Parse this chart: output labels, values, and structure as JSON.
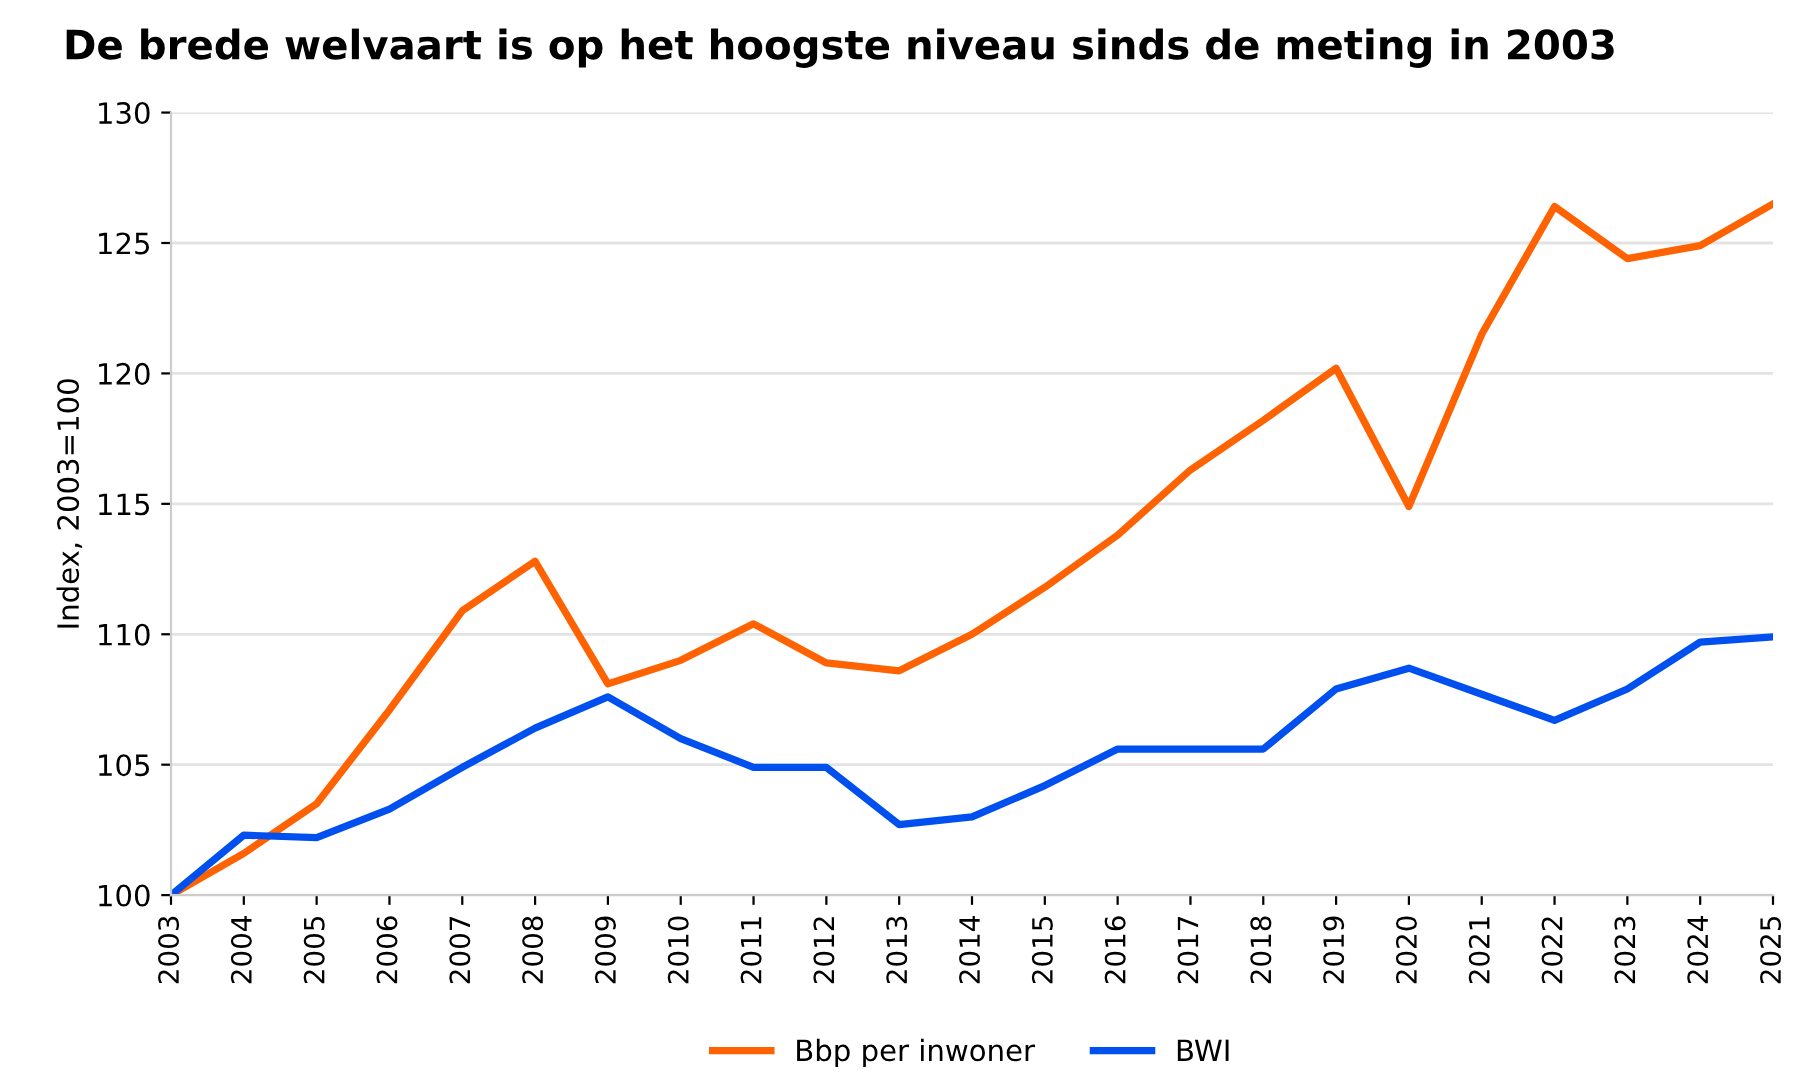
{
  "chart_data": {
    "type": "line",
    "title": "De brede welvaart is op het hoogste niveau sinds de meting in 2003",
    "ylabel": "Index, 2003=100",
    "categories": [
      "2003",
      "2004",
      "2005",
      "2006",
      "2007",
      "2008",
      "2009",
      "2010",
      "2011",
      "2012",
      "2013",
      "2014",
      "2015",
      "2016",
      "2017",
      "2018",
      "2019",
      "2020",
      "2021",
      "2022",
      "2023",
      "2024",
      "2025"
    ],
    "series": [
      {
        "name": "Bbp per inwoner",
        "color": "#ff6200",
        "values": [
          100,
          101.6,
          103.5,
          107.1,
          110.9,
          112.8,
          108.1,
          109.0,
          110.4,
          108.9,
          108.6,
          110.0,
          111.8,
          113.8,
          116.3,
          118.2,
          120.2,
          114.9,
          121.5,
          126.4,
          124.4,
          124.9,
          126.5
        ]
      },
      {
        "name": "BWI",
        "color": "#0050f0",
        "values": [
          100,
          102.3,
          102.2,
          103.3,
          104.9,
          106.4,
          107.6,
          106.0,
          104.9,
          104.9,
          102.7,
          103.0,
          104.2,
          105.6,
          105.6,
          105.6,
          107.9,
          108.7,
          107.7,
          106.7,
          107.9,
          109.7,
          109.9
        ]
      }
    ],
    "ylim": [
      100,
      130
    ],
    "yticks": [
      100,
      105,
      110,
      115,
      120,
      125,
      130
    ],
    "grid": "y",
    "legend": "bottom",
    "marker": "none",
    "line_style": "solid"
  }
}
